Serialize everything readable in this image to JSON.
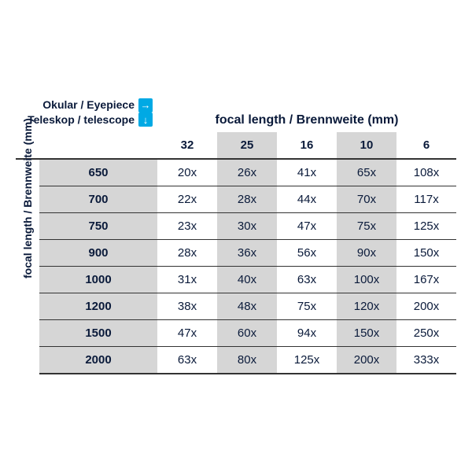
{
  "header": {
    "eyepiece_label": "Okular / Eyepiece",
    "telescope_label": "Teleskop / telescope",
    "focal_length_label": "focal length / Brennweite (mm)",
    "arrow_right": "→",
    "arrow_down": "↓"
  },
  "side_label": "focal length / Brennweite (mm)",
  "eyepiece_columns": [
    {
      "value": "32",
      "shaded": false
    },
    {
      "value": "25",
      "shaded": true
    },
    {
      "value": "16",
      "shaded": false
    },
    {
      "value": "10",
      "shaded": true
    },
    {
      "value": "6",
      "shaded": false
    }
  ],
  "rows": [
    {
      "fl": "650",
      "cells": [
        "20x",
        "26x",
        "41x",
        "65x",
        "108x"
      ]
    },
    {
      "fl": "700",
      "cells": [
        "22x",
        "28x",
        "44x",
        "70x",
        "117x"
      ]
    },
    {
      "fl": "750",
      "cells": [
        "23x",
        "30x",
        "47x",
        "75x",
        "125x"
      ]
    },
    {
      "fl": "900",
      "cells": [
        "28x",
        "36x",
        "56x",
        "90x",
        "150x"
      ]
    },
    {
      "fl": "1000",
      "cells": [
        "31x",
        "40x",
        "63x",
        "100x",
        "167x"
      ]
    },
    {
      "fl": "1200",
      "cells": [
        "38x",
        "48x",
        "75x",
        "120x",
        "200x"
      ]
    },
    {
      "fl": "1500",
      "cells": [
        "47x",
        "60x",
        "94x",
        "150x",
        "250x"
      ]
    },
    {
      "fl": "2000",
      "cells": [
        "63x",
        "80x",
        "125x",
        "200x",
        "333x"
      ]
    }
  ],
  "colors": {
    "text": "#0a1a3a",
    "shade": "#d6d6d6",
    "arrow_bg": "#00a9e4",
    "border": "#333333"
  }
}
